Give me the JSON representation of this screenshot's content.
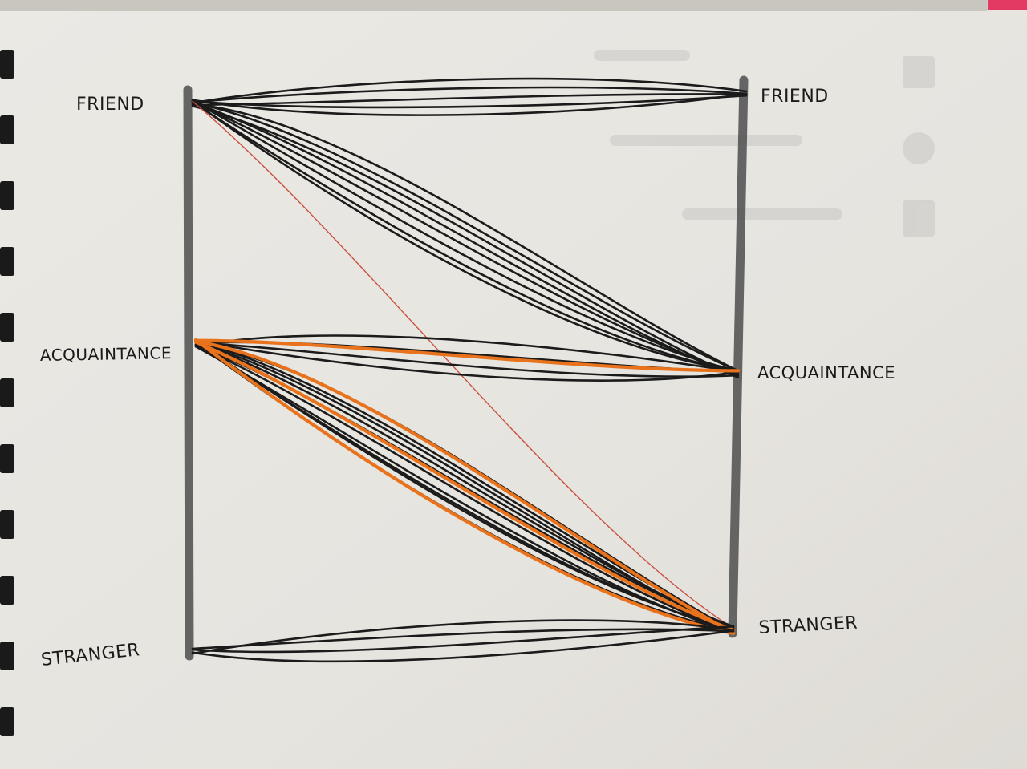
{
  "left_labels": {
    "friend": "FRIEND",
    "acquaintance": "ACQUAINTANCE",
    "stranger": "STRANGER"
  },
  "right_labels": {
    "friend": "FRIEND",
    "acquaintance": "ACQUAINTANCE",
    "stranger": "STRANGER"
  },
  "colors": {
    "ink": "#1b1b1b",
    "highlight": "#e8731c",
    "thin_red": "#c9503f",
    "axis": "#4e4e4e",
    "paper": "#e9e7e2"
  },
  "flows": [
    {
      "from": "friend",
      "to": "friend",
      "count": 5,
      "color": "ink"
    },
    {
      "from": "friend",
      "to": "acquaintance",
      "count": 8,
      "color": "ink"
    },
    {
      "from": "friend",
      "to": "stranger",
      "count": 1,
      "color": "thin_red"
    },
    {
      "from": "acquaintance",
      "to": "acquaintance",
      "count": 4,
      "color": "ink"
    },
    {
      "from": "acquaintance",
      "to": "acquaintance",
      "count": 1,
      "color": "highlight"
    },
    {
      "from": "acquaintance",
      "to": "stranger",
      "count": 10,
      "color": "ink"
    },
    {
      "from": "acquaintance",
      "to": "stranger",
      "count": 3,
      "color": "highlight"
    },
    {
      "from": "stranger",
      "to": "stranger",
      "count": 4,
      "color": "ink"
    }
  ]
}
